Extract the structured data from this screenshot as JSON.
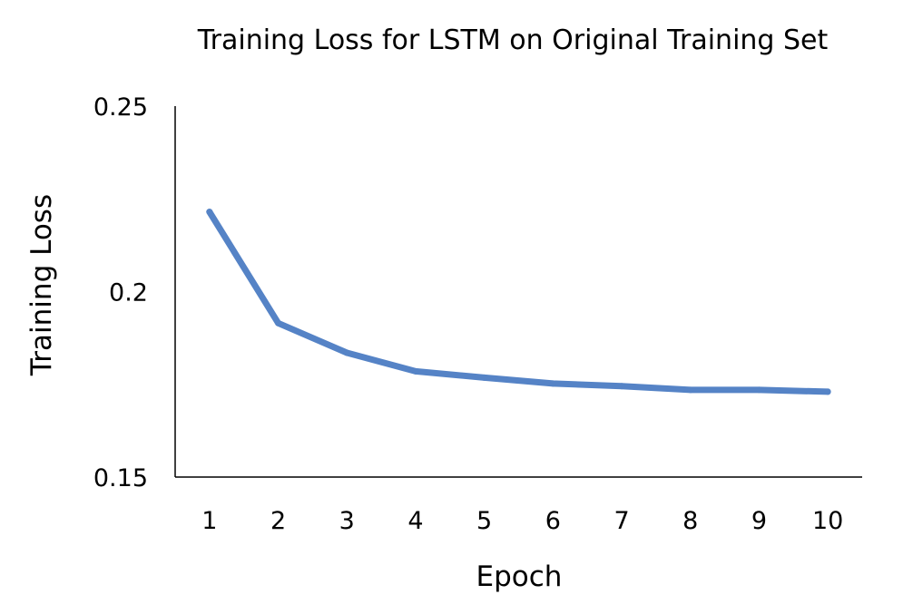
{
  "chart_data": {
    "type": "line",
    "title": "Training Loss for LSTM on Original Training Set",
    "xlabel": "Epoch",
    "ylabel": "Training Loss",
    "x": [
      1,
      2,
      3,
      4,
      5,
      6,
      7,
      8,
      9,
      10
    ],
    "x_tick_labels": [
      "1",
      "2",
      "3",
      "4",
      "5",
      "6",
      "7",
      "8",
      "9",
      "10"
    ],
    "y_tick_labels": [
      "0.25",
      "0.2",
      "0.15"
    ],
    "y_ticks": [
      0.25,
      0.2,
      0.15
    ],
    "ylim": [
      0.15,
      0.25
    ],
    "grid": false,
    "series": [
      {
        "values": [
          0.2215,
          0.1915,
          0.1835,
          0.1785,
          0.1768,
          0.1752,
          0.1745,
          0.1735,
          0.1735,
          0.173
        ],
        "color": "#5583c6"
      }
    ]
  }
}
